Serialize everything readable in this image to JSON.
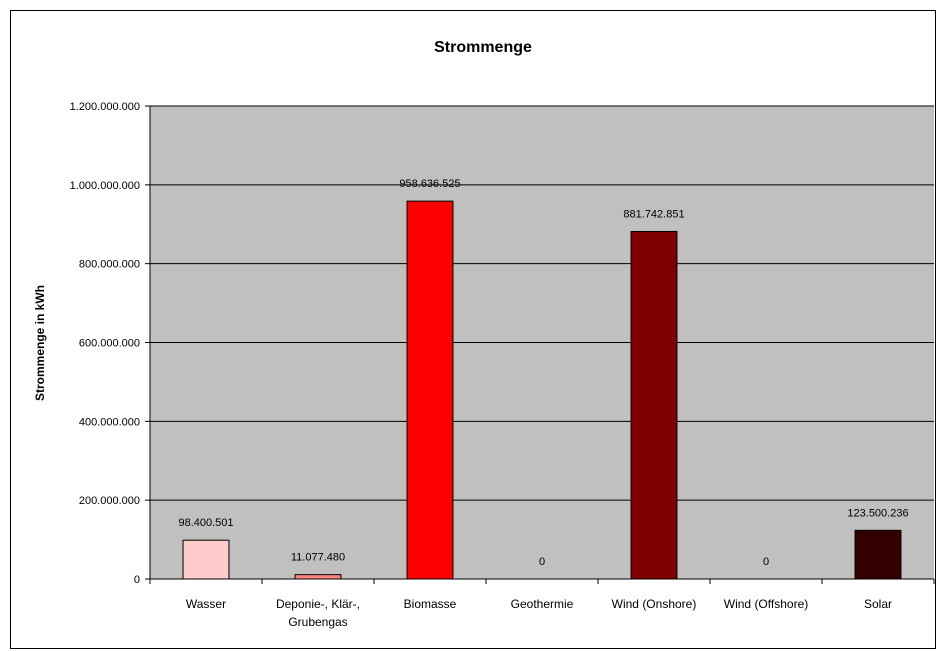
{
  "chart_data": {
    "type": "bar",
    "title": "Strommenge",
    "xlabel": "",
    "ylabel": "Strommenge in kWh",
    "ylim": [
      0,
      1200000000
    ],
    "yticks": [
      0,
      200000000,
      400000000,
      600000000,
      800000000,
      1000000000,
      1200000000
    ],
    "ytick_labels": [
      "0",
      "200.000.000",
      "400.000.000",
      "600.000.000",
      "800.000.000",
      "1.000.000.000",
      "1.200.000.000"
    ],
    "categories": [
      [
        "Wasser"
      ],
      [
        "Deponie-, Klär-,",
        "Grubengas"
      ],
      [
        "Biomasse"
      ],
      [
        "Geothermie"
      ],
      [
        "Wind (Onshore)"
      ],
      [
        "Wind (Offshore)"
      ],
      [
        "Solar"
      ]
    ],
    "values": [
      98400501,
      11077480,
      958636525,
      0,
      881742851,
      0,
      123500236
    ],
    "data_labels": [
      "98.400.501",
      "11.077.480",
      "958.636.525",
      "0",
      "881.742.851",
      "0",
      "123.500.236"
    ],
    "colors": [
      "#ffcccc",
      "#ff8080",
      "#ff0000",
      "#c00000",
      "#800000",
      "#400000",
      "#330000"
    ],
    "plot_background": "#c0c0c0",
    "grid": true,
    "legend": "none"
  }
}
